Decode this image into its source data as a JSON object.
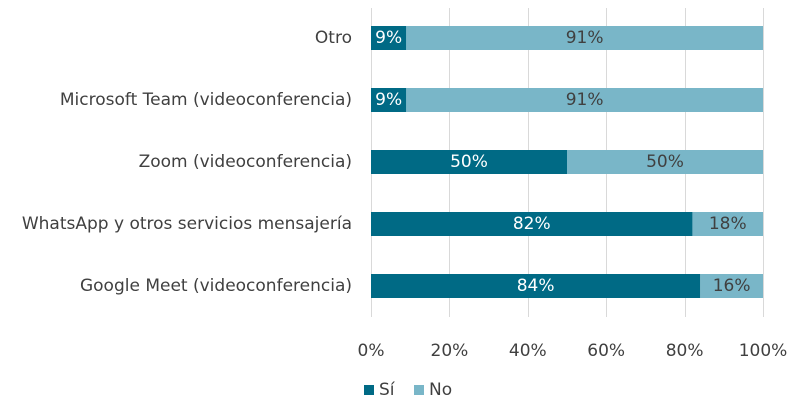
{
  "chart_data": {
    "type": "bar",
    "orientation": "horizontal",
    "stacked": true,
    "percent": true,
    "categories": [
      "Otro",
      "Microsoft Team (videoconferencia)",
      "Zoom (videoconferencia)",
      "WhatsApp y otros servicios mensajería",
      "Google Meet (videoconferencia)"
    ],
    "series": [
      {
        "name": "Sí",
        "color": "#006a85",
        "values": [
          9,
          9,
          50,
          82,
          84
        ],
        "labels": [
          "9%",
          "9%",
          "50%",
          "82%",
          "84%"
        ]
      },
      {
        "name": "No",
        "color": "#79b6c8",
        "values": [
          91,
          91,
          50,
          18,
          16
        ],
        "labels": [
          "91%",
          "91%",
          "50%",
          "18%",
          "16%"
        ]
      }
    ],
    "xlim": [
      0,
      100
    ],
    "xticks": [
      "0%",
      "20%",
      "40%",
      "60%",
      "80%",
      "100%"
    ],
    "grid": true,
    "legend_position": "bottom-center"
  }
}
